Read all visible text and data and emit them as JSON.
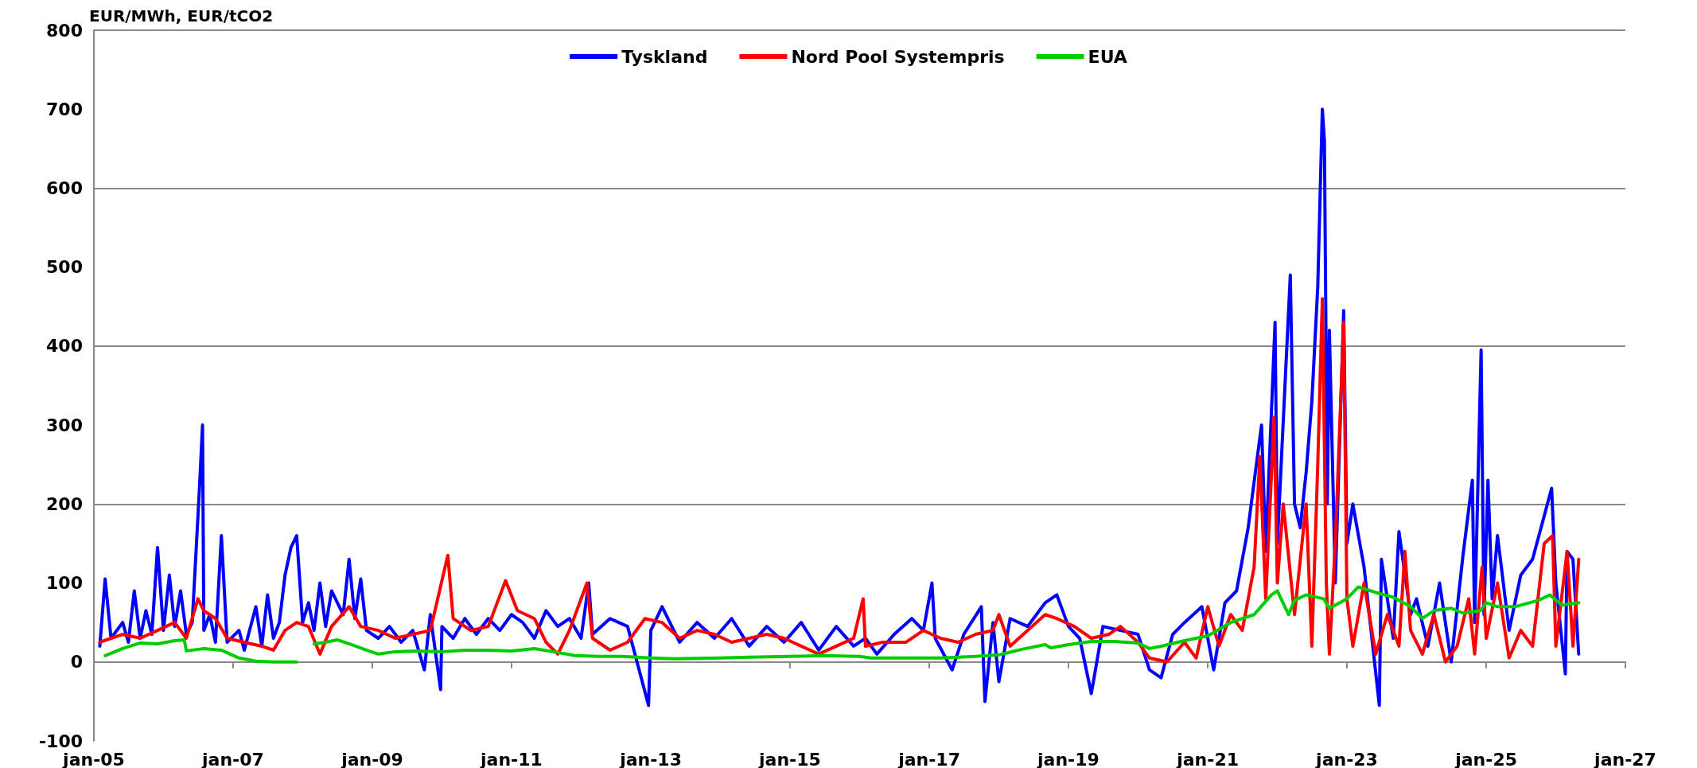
{
  "chart_data": {
    "type": "line",
    "ylabel": "EUR/MWh, EUR/tCO2",
    "xlim": [
      "2005-01",
      "2027-01"
    ],
    "xticks": [
      {
        "value": "2005-01",
        "label": "jan-05"
      },
      {
        "value": "2007-01",
        "label": "jan-07"
      },
      {
        "value": "2009-01",
        "label": "jan-09"
      },
      {
        "value": "2011-01",
        "label": "jan-11"
      },
      {
        "value": "2013-01",
        "label": "jan-13"
      },
      {
        "value": "2015-01",
        "label": "jan-15"
      },
      {
        "value": "2017-01",
        "label": "jan-17"
      },
      {
        "value": "2019-01",
        "label": "jan-19"
      },
      {
        "value": "2021-01",
        "label": "jan-21"
      },
      {
        "value": "2023-01",
        "label": "jan-23"
      },
      {
        "value": "2025-01",
        "label": "jan-25"
      },
      {
        "value": "2027-01",
        "label": "jan-27"
      }
    ],
    "ylim": [
      -100,
      800
    ],
    "yticks": [
      -100,
      0,
      100,
      200,
      300,
      400,
      500,
      600,
      700,
      800
    ],
    "grid": "y",
    "legend": "top",
    "marker": "none",
    "line_style": "solid",
    "series": [
      {
        "name": "Tyskland",
        "color": "#0000ff",
        "x": [
          "2005-02",
          "2005-03",
          "2005-04",
          "2005-06",
          "2005-07",
          "2005-08",
          "2005-09",
          "2005-10",
          "2005-11",
          "2005-12",
          "2006-01",
          "2006-02",
          "2006-03",
          "2006-04",
          "2006-05",
          "2006-06",
          "2006-07-10",
          "2006-07-25",
          "2006-08",
          "2006-09",
          "2006-10",
          "2006-11",
          "2006-12",
          "2007-02",
          "2007-03",
          "2007-05",
          "2007-06",
          "2007-07",
          "2007-08",
          "2007-09",
          "2007-10",
          "2007-11",
          "2007-12",
          "2008-01",
          "2008-02",
          "2008-03",
          "2008-04",
          "2008-05",
          "2008-06",
          "2008-08",
          "2008-09",
          "2008-10",
          "2008-11",
          "2008-12",
          "2009-02",
          "2009-04",
          "2009-06",
          "2009-08",
          "2009-10",
          "2009-11",
          "2009-12-25",
          "2010-01",
          "2010-03",
          "2010-05",
          "2010-07",
          "2010-09",
          "2010-11",
          "2011-01",
          "2011-03",
          "2011-05",
          "2011-07",
          "2011-09",
          "2011-11",
          "2012-01",
          "2012-02-10",
          "2012-03",
          "2012-06",
          "2012-09",
          "2012-12-20",
          "2013-01",
          "2013-03",
          "2013-06",
          "2013-09",
          "2013-12",
          "2014-03",
          "2014-06",
          "2014-09",
          "2014-12",
          "2015-03",
          "2015-06",
          "2015-09",
          "2015-12",
          "2016-02",
          "2016-04",
          "2016-07",
          "2016-10",
          "2016-12",
          "2017-01-15",
          "2017-02",
          "2017-05",
          "2017-07",
          "2017-10",
          "2017-10-20",
          "2017-12",
          "2018-01",
          "2018-03",
          "2018-06",
          "2018-09",
          "2018-11",
          "2019-01",
          "2019-03",
          "2019-05",
          "2019-07",
          "2019-10",
          "2020-01",
          "2020-03",
          "2020-05",
          "2020-07",
          "2020-09",
          "2020-12",
          "2021-02",
          "2021-04",
          "2021-06",
          "2021-08",
          "2021-10-10",
          "2021-11",
          "2021-12-20",
          "2022-01",
          "2022-03-10",
          "2022-04",
          "2022-05",
          "2022-06",
          "2022-07",
          "2022-08-01",
          "2022-08-25",
          "2022-09-05",
          "2022-09-20",
          "2022-10",
          "2022-11",
          "2022-12-15",
          "2023-01",
          "2023-02",
          "2023-04",
          "2023-06-20",
          "2023-07",
          "2023-09",
          "2023-10",
          "2023-12",
          "2024-01",
          "2024-03",
          "2024-05",
          "2024-07",
          "2024-09",
          "2024-10-20",
          "2024-11",
          "2024-12-05",
          "2024-12-20",
          "2025-01-10",
          "2025-02",
          "2025-03",
          "2025-05",
          "2025-07",
          "2025-09",
          "2025-12-10",
          "2026-01",
          "2026-02-20",
          "2026-03",
          "2026-04",
          "2026-05"
        ],
        "values": [
          20,
          105,
          30,
          50,
          25,
          90,
          30,
          65,
          35,
          145,
          40,
          110,
          45,
          90,
          35,
          50,
          225,
          300,
          40,
          60,
          25,
          160,
          25,
          40,
          15,
          70,
          20,
          85,
          30,
          50,
          110,
          145,
          160,
          50,
          75,
          40,
          100,
          45,
          90,
          60,
          130,
          55,
          105,
          40,
          30,
          45,
          25,
          40,
          -10,
          60,
          -35,
          45,
          30,
          55,
          35,
          55,
          40,
          60,
          50,
          30,
          65,
          45,
          55,
          30,
          100,
          35,
          55,
          45,
          -55,
          40,
          70,
          25,
          50,
          30,
          55,
          20,
          45,
          25,
          50,
          15,
          45,
          20,
          30,
          10,
          35,
          55,
          40,
          100,
          30,
          -10,
          35,
          70,
          -50,
          50,
          -25,
          55,
          45,
          75,
          85,
          45,
          30,
          -40,
          45,
          40,
          35,
          -10,
          -20,
          35,
          50,
          70,
          -10,
          75,
          90,
          170,
          300,
          140,
          430,
          150,
          490,
          200,
          170,
          240,
          330,
          475,
          700,
          660,
          200,
          420,
          100,
          445,
          150,
          200,
          120,
          -55,
          130,
          30,
          165,
          60,
          80,
          20,
          100,
          0,
          135,
          230,
          50,
          395,
          60,
          230,
          80,
          160,
          40,
          110,
          130,
          220,
          100,
          -15,
          140,
          130,
          10
        ]
      },
      {
        "name": "Nord Pool Systempris",
        "color": "#ff0000",
        "x": [
          "2005-02",
          "2005-04",
          "2005-06",
          "2005-09",
          "2005-12",
          "2006-03",
          "2006-05",
          "2006-07",
          "2006-08",
          "2006-10",
          "2006-12",
          "2007-03",
          "2007-06",
          "2007-08",
          "2007-10",
          "2007-12",
          "2008-02",
          "2008-04",
          "2008-06",
          "2008-09",
          "2008-11",
          "2009-02",
          "2009-05",
          "2009-08",
          "2009-11",
          "2010-02",
          "2010-03",
          "2010-06",
          "2010-09",
          "2010-12",
          "2011-02",
          "2011-05",
          "2011-07",
          "2011-09",
          "2011-11",
          "2012-02",
          "2012-03",
          "2012-06",
          "2012-09",
          "2012-12",
          "2013-03",
          "2013-06",
          "2013-09",
          "2013-12",
          "2014-03",
          "2014-06",
          "2014-09",
          "2014-12",
          "2015-03",
          "2015-06",
          "2015-09",
          "2015-12",
          "2016-01-20",
          "2016-02",
          "2016-05",
          "2016-09",
          "2016-12",
          "2017-03",
          "2017-06",
          "2017-09",
          "2017-12",
          "2018-01",
          "2018-03",
          "2018-06",
          "2018-09",
          "2018-11",
          "2019-02",
          "2019-05",
          "2019-08",
          "2019-10",
          "2020-01",
          "2020-03",
          "2020-06",
          "2020-09",
          "2020-11",
          "2021-01",
          "2021-03",
          "2021-05",
          "2021-07",
          "2021-09",
          "2021-10",
          "2021-11",
          "2021-12-15",
          "2022-01",
          "2022-02",
          "2022-04",
          "2022-06",
          "2022-07",
          "2022-08",
          "2022-08-25",
          "2022-09-15",
          "2022-10",
          "2022-11",
          "2022-12-15",
          "2023-01",
          "2023-02",
          "2023-04",
          "2023-06",
          "2023-08",
          "2023-10",
          "2023-11",
          "2023-12",
          "2024-02",
          "2024-04",
          "2024-06",
          "2024-08",
          "2024-10",
          "2024-11",
          "2024-12-10",
          "2025-01",
          "2025-03",
          "2025-05",
          "2025-07",
          "2025-09",
          "2025-11",
          "2025-12-15",
          "2026-01",
          "2026-03",
          "2026-04",
          "2026-05"
        ],
        "values": [
          25,
          30,
          35,
          30,
          40,
          50,
          30,
          80,
          65,
          55,
          30,
          25,
          20,
          15,
          40,
          50,
          45,
          10,
          45,
          70,
          45,
          40,
          30,
          35,
          40,
          135,
          55,
          40,
          45,
          103,
          65,
          55,
          25,
          10,
          40,
          100,
          30,
          15,
          25,
          55,
          50,
          30,
          40,
          35,
          25,
          30,
          35,
          30,
          20,
          10,
          20,
          30,
          80,
          20,
          25,
          25,
          40,
          30,
          25,
          35,
          40,
          60,
          20,
          40,
          60,
          55,
          45,
          30,
          35,
          45,
          25,
          5,
          0,
          25,
          5,
          70,
          20,
          60,
          40,
          120,
          260,
          80,
          310,
          100,
          200,
          60,
          200,
          20,
          250,
          460,
          100,
          10,
          150,
          430,
          80,
          20,
          100,
          10,
          60,
          20,
          140,
          40,
          10,
          60,
          0,
          20,
          80,
          10,
          120,
          30,
          100,
          5,
          40,
          20,
          150,
          160,
          20,
          140,
          20,
          130
        ]
      },
      {
        "name": "EUA",
        "color": "#00cc00",
        "x": [
          "2005-03",
          "2005-06",
          "2005-09",
          "2005-12",
          "2006-03",
          "2006-04-20",
          "2006-05",
          "2006-08",
          "2006-11",
          "2007-02",
          "2007-05",
          "2007-08",
          "2007-12",
          "2008-01",
          "2008-03",
          "2008-05",
          "2008-07",
          "2008-09",
          "2008-12",
          "2009-02",
          "2009-05",
          "2009-09",
          "2010-01",
          "2010-05",
          "2010-09",
          "2011-01",
          "2011-05",
          "2011-09",
          "2011-12",
          "2012-04",
          "2012-08",
          "2013-01",
          "2013-05",
          "2014-01",
          "2014-06",
          "2015-01",
          "2015-06",
          "2016-01",
          "2016-03",
          "2016-09",
          "2017-03",
          "2017-09",
          "2018-01",
          "2018-05",
          "2018-09",
          "2018-10",
          "2019-01",
          "2019-05",
          "2019-09",
          "2020-01",
          "2020-03",
          "2020-05",
          "2020-09",
          "2021-01",
          "2021-05",
          "2021-09",
          "2021-12",
          "2022-01",
          "2022-03",
          "2022-04",
          "2022-06",
          "2022-09",
          "2022-10",
          "2023-01",
          "2023-03",
          "2023-06",
          "2023-09",
          "2023-12",
          "2024-02",
          "2024-04",
          "2024-07",
          "2024-09",
          "2024-12",
          "2025-01",
          "2025-03",
          "2025-06",
          "2025-10",
          "2025-12",
          "2026-02",
          "2026-05"
        ],
        "values": [
          8,
          17,
          24,
          23,
          27,
          28,
          14,
          17,
          15,
          5,
          1,
          0,
          0,
          null,
          23,
          25,
          28,
          23,
          15,
          10,
          13,
          14,
          13,
          15,
          15,
          14,
          17,
          12,
          8,
          7,
          7,
          5,
          4,
          5,
          6,
          7,
          8,
          7,
          5,
          5,
          5,
          7,
          9,
          16,
          22,
          18,
          22,
          26,
          26,
          24,
          17,
          20,
          27,
          33,
          50,
          60,
          85,
          90,
          60,
          78,
          85,
          80,
          68,
          80,
          95,
          88,
          82,
          70,
          55,
          65,
          68,
          62,
          65,
          75,
          70,
          70,
          78,
          85,
          72,
          75
        ]
      }
    ]
  }
}
